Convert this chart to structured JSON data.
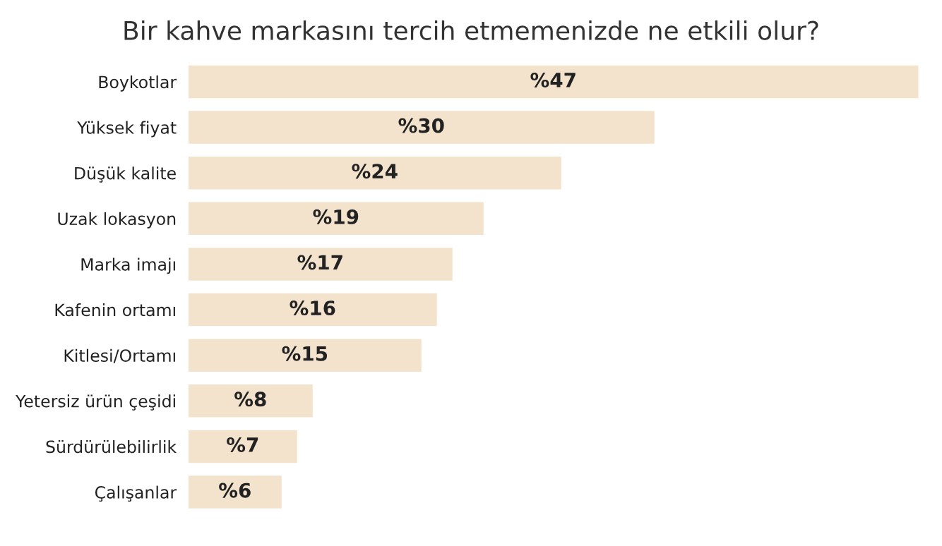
{
  "chart_data": {
    "type": "bar",
    "orientation": "horizontal",
    "title": "Bir kahve markasını tercih etmemenizde ne etkili olur?",
    "categories": [
      "Boykotlar",
      "Yüksek fiyat",
      "Düşük kalite",
      "Uzak lokasyon",
      "Marka imajı",
      "Kafenin ortamı",
      "Kitlesi/Ortamı",
      "Yetersiz ürün çeşidi",
      "Sürdürülebilirlik",
      "Çalışanlar"
    ],
    "values": [
      47,
      30,
      24,
      19,
      17,
      16,
      15,
      8,
      7,
      6
    ],
    "value_labels": [
      "%47",
      "%30",
      "%24",
      "%19",
      "%17",
      "%16",
      "%15",
      "%8",
      "%7",
      "%6"
    ],
    "color": "#f3e3cc",
    "tick_labels": "y",
    "grid": false
  }
}
